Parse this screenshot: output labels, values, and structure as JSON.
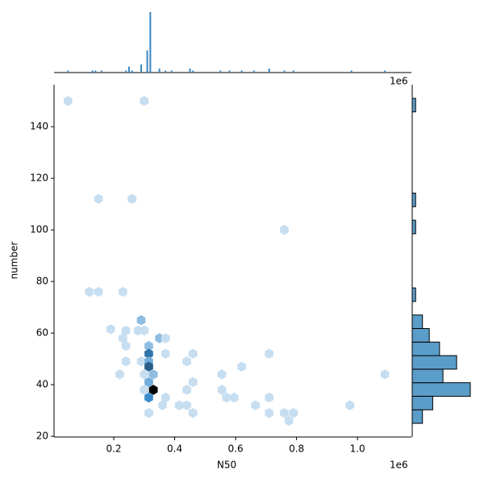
{
  "chart_data": [
    {
      "type": "hexbin",
      "xlabel": "N50",
      "ylabel": "number",
      "offset_label": "1e6",
      "xlim": [
        0.004,
        1.177
      ],
      "ylim": [
        19.7,
        156.3
      ],
      "xticks": [
        0.2,
        0.4,
        0.6,
        0.8,
        {
          "value": 1,
          "label": "1.0"
        }
      ],
      "yticks": [
        20,
        40,
        60,
        80,
        100,
        120,
        140
      ],
      "colors": [
        "#e3eef8",
        "#3a8ccc",
        "#000000"
      ],
      "max_count": 12,
      "x": [
        0.05,
        0.3,
        0.15,
        0.26,
        0.76,
        0.12,
        0.15,
        0.23,
        0.19,
        0.29,
        0.24,
        0.28,
        0.3,
        0.23,
        0.35,
        0.37,
        0.24,
        0.315,
        0.315,
        0.37,
        0.46,
        0.71,
        0.24,
        0.29,
        0.315,
        0.44,
        0.315,
        0.62,
        0.22,
        0.3,
        0.33,
        0.555,
        1.09,
        0.315,
        0.46,
        0.3,
        0.33,
        0.44,
        0.555,
        0.315,
        0.37,
        0.57,
        0.595,
        0.71,
        0.36,
        0.415,
        0.44,
        0.665,
        0.975,
        0.315,
        0.46,
        0.71,
        0.76,
        0.79,
        0.775
      ],
      "y": [
        150,
        150,
        112,
        112,
        100,
        76,
        76,
        76,
        61.5,
        65,
        61,
        61,
        61,
        58,
        58,
        58,
        55,
        55,
        52,
        52,
        52,
        52,
        49,
        49,
        49,
        49,
        47,
        47,
        44,
        44,
        44,
        44,
        44,
        41,
        41,
        38,
        38,
        38,
        38,
        35,
        35,
        35,
        35,
        35,
        32,
        32,
        32,
        32,
        32,
        29,
        29,
        29,
        29,
        29,
        26
      ],
      "values": [
        1,
        1,
        1,
        1,
        1,
        1,
        1,
        1,
        1,
        3,
        1,
        1,
        1,
        1,
        3,
        1,
        1,
        3,
        7,
        1,
        1,
        1,
        1,
        1,
        4,
        1,
        8,
        1,
        1,
        1,
        3,
        1,
        1,
        4,
        1,
        1,
        12,
        1,
        1,
        6,
        1,
        1,
        1,
        1,
        1,
        1,
        1,
        1,
        1,
        1,
        1,
        1,
        1,
        1,
        1
      ]
    },
    {
      "type": "bar",
      "offset_label": "1e6",
      "xlim": [
        0.004,
        1.177
      ],
      "ylim": [
        0,
        30
      ],
      "color": "#3a85c0",
      "x": [
        0.05,
        0.13,
        0.14,
        0.16,
        0.24,
        0.25,
        0.26,
        0.29,
        0.31,
        0.32,
        0.35,
        0.37,
        0.39,
        0.45,
        0.46,
        0.55,
        0.58,
        0.62,
        0.66,
        0.71,
        0.76,
        0.79,
        0.98,
        1.09
      ],
      "values": [
        1,
        1,
        1,
        1,
        1,
        3,
        1,
        4,
        11,
        30,
        2,
        1,
        1,
        2,
        1,
        1,
        1,
        1,
        1,
        2,
        1,
        1,
        1,
        1
      ]
    },
    {
      "type": "histogram",
      "ylim": [
        19.7,
        156.3
      ],
      "xlim": [
        0,
        17
      ],
      "color": "#5b9dc9",
      "bins": [
        25,
        30.25,
        35.5,
        40.75,
        46,
        51.25,
        56.5,
        61.75,
        67,
        72.25,
        77.5,
        82.75,
        88,
        93.25,
        98.5,
        103.75,
        109,
        114.25,
        119.5,
        124.75,
        130,
        135.25,
        140.5,
        145.75,
        151
      ],
      "values": [
        3,
        6,
        17,
        9,
        13,
        8,
        5,
        3,
        0,
        1,
        0,
        0,
        0,
        0,
        1,
        0,
        1,
        0,
        0,
        0,
        0,
        0,
        0,
        1
      ]
    }
  ]
}
